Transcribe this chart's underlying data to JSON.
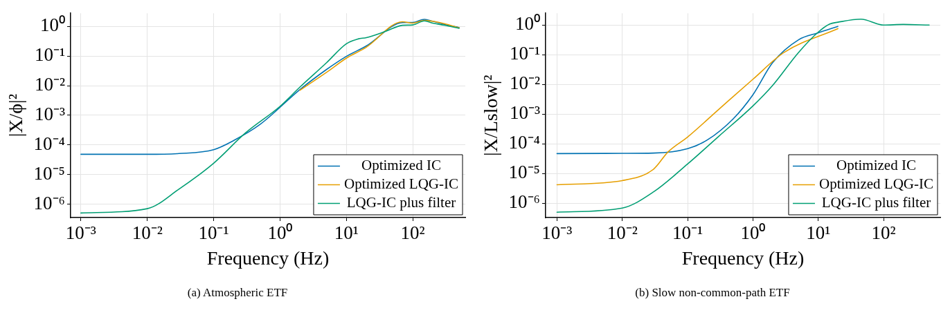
{
  "chart_data": [
    {
      "type": "line",
      "xlabel": "Frequency (Hz)",
      "ylabel": "|X/ϕ|²",
      "annotations": [
        "(a) Atmospheric ETF"
      ],
      "log": "xy",
      "grid": true,
      "legend": "bottom right",
      "marker": "none",
      "line_style": "solid",
      "xlim": [
        0.0007,
        620
      ],
      "ylim": [
        3.5e-07,
        2.8
      ],
      "xticks": [
        {
          "value": 0.001,
          "label": "10⁻³"
        },
        {
          "value": 0.01,
          "label": "10⁻²"
        },
        {
          "value": 0.1,
          "label": "10⁻¹"
        },
        {
          "value": 1,
          "label": "10⁰"
        },
        {
          "value": 10,
          "label": "10¹"
        },
        {
          "value": 100,
          "label": "10²"
        }
      ],
      "yticks": [
        {
          "value": 1e-06,
          "label": "10⁻⁶"
        },
        {
          "value": 1e-05,
          "label": "10⁻⁵"
        },
        {
          "value": 0.0001,
          "label": "10⁻⁴"
        },
        {
          "value": 0.001,
          "label": "10⁻³"
        },
        {
          "value": 0.01,
          "label": "10⁻²"
        },
        {
          "value": 0.1,
          "label": "10⁻¹"
        },
        {
          "value": 1,
          "label": "10⁰"
        }
      ],
      "series": [
        {
          "name": "Optimized IC",
          "color": "#0072b2",
          "x": [
            0.001,
            0.01,
            0.03,
            0.1,
            0.2,
            0.5,
            2,
            5,
            10,
            20,
            70,
            100,
            150,
            200,
            300,
            500
          ],
          "values": [
            4.8e-05,
            4.8e-05,
            5.1e-05,
            6.9e-05,
            0.00014,
            0.00049,
            0.0074,
            0.035,
            0.098,
            0.22,
            1.35,
            1.37,
            1.75,
            1.5,
            1.18,
            0.92
          ]
        },
        {
          "name": "Optimized LQG-IC",
          "color": "#e69f00",
          "x": [
            2,
            5,
            10,
            20,
            70,
            100,
            150,
            200,
            300,
            500
          ],
          "values": [
            0.007,
            0.028,
            0.085,
            0.2,
            1.45,
            1.3,
            1.6,
            1.5,
            1.25,
            0.9
          ]
        },
        {
          "name": "LQG-IC plus filter",
          "color": "#009e73",
          "x": [
            0.001,
            0.01,
            0.03,
            0.1,
            0.3,
            1,
            2,
            5,
            10,
            15,
            20,
            40,
            70,
            100,
            150,
            200,
            300,
            500
          ],
          "values": [
            5e-07,
            7e-07,
            3.2e-06,
            2.4e-05,
            0.00025,
            0.002,
            0.009,
            0.059,
            0.26,
            0.38,
            0.42,
            0.7,
            1.1,
            1.13,
            1.55,
            1.3,
            1.1,
            0.87
          ]
        }
      ]
    },
    {
      "type": "line",
      "xlabel": "Frequency (Hz)",
      "ylabel": "|X/Lslow|²",
      "annotations": [
        "(b) Slow non-common-path ETF"
      ],
      "log": "xy",
      "grid": true,
      "legend": "bottom right",
      "marker": "none",
      "line_style": "solid",
      "xlim": [
        0.00067,
        740
      ],
      "ylim": [
        3.3e-07,
        2.5
      ],
      "xticks": [
        {
          "value": 0.001,
          "label": "10⁻³"
        },
        {
          "value": 0.01,
          "label": "10⁻²"
        },
        {
          "value": 0.1,
          "label": "10⁻¹"
        },
        {
          "value": 1,
          "label": "10⁰"
        },
        {
          "value": 10,
          "label": "10¹"
        },
        {
          "value": 100,
          "label": "10²"
        }
      ],
      "yticks": [
        {
          "value": 1e-06,
          "label": "10⁻⁶"
        },
        {
          "value": 1e-05,
          "label": "10⁻⁵"
        },
        {
          "value": 0.0001,
          "label": "10⁻⁴"
        },
        {
          "value": 0.001,
          "label": "10⁻³"
        },
        {
          "value": 0.01,
          "label": "10⁻²"
        },
        {
          "value": 0.1,
          "label": "10⁻¹"
        },
        {
          "value": 1,
          "label": "10⁰"
        }
      ],
      "series": [
        {
          "name": "Optimized IC",
          "color": "#0072b2",
          "x": [
            0.001,
            0.01,
            0.03,
            0.1,
            0.2,
            0.5,
            1,
            2,
            5,
            10,
            20
          ],
          "values": [
            4.7e-05,
            4.8e-05,
            4.9e-05,
            6.9e-05,
            0.000135,
            0.0007,
            0.0045,
            0.054,
            0.32,
            0.55,
            0.9
          ]
        },
        {
          "name": "Optimized LQG-IC",
          "color": "#e69f00",
          "x": [
            0.001,
            0.01,
            0.03,
            0.05,
            0.1,
            0.3,
            1,
            3,
            20
          ],
          "values": [
            4.2e-06,
            5.8e-06,
            1.4e-05,
            5.3e-05,
            0.00017,
            0.00145,
            0.015,
            0.12,
            0.76
          ]
        },
        {
          "name": "LQG-IC plus filter",
          "color": "#009e73",
          "x": [
            0.001,
            0.01,
            0.03,
            0.1,
            0.3,
            1,
            2,
            5,
            10,
            15,
            20,
            45,
            100,
            200,
            500
          ],
          "values": [
            5e-07,
            6.9e-07,
            2.4e-06,
            2.1e-05,
            0.00018,
            0.0019,
            0.0093,
            0.12,
            0.58,
            1.09,
            1.25,
            1.58,
            1.0,
            1.05,
            1.0
          ]
        }
      ]
    }
  ]
}
